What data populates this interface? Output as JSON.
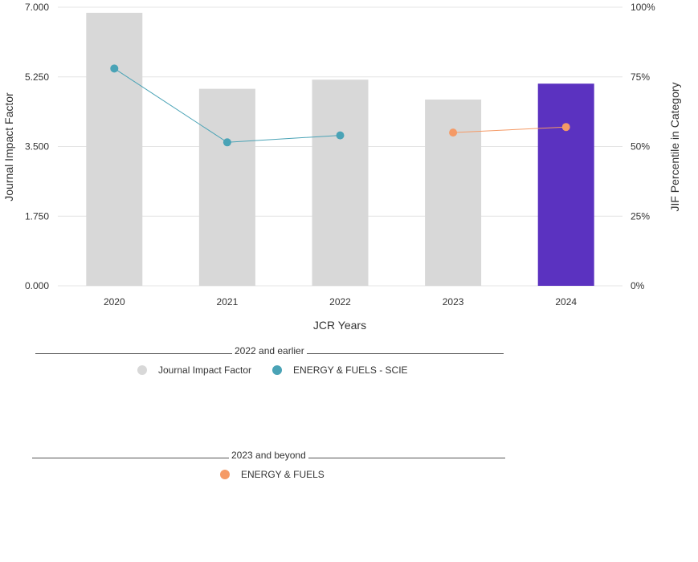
{
  "chart_data": {
    "type": "bar",
    "xlabel": "JCR Years",
    "ylabel": "Journal Impact Factor",
    "y2label": "JIF Percentile in Category",
    "categories": [
      "2020",
      "2021",
      "2022",
      "2023",
      "2024"
    ],
    "ylim": [
      0,
      7
    ],
    "y_ticks": [
      "0.000",
      "1.750",
      "3.500",
      "5.250",
      "7.000"
    ],
    "y2lim": [
      0,
      100
    ],
    "y2_ticks": [
      "0%",
      "25%",
      "50%",
      "75%",
      "100%"
    ],
    "grid": true,
    "bars": {
      "name": "Journal Impact Factor",
      "values": [
        6.86,
        4.95,
        5.18,
        4.68,
        5.08
      ],
      "colors": [
        "#d8d8d8",
        "#d8d8d8",
        "#d8d8d8",
        "#d8d8d8",
        "#5b32c0"
      ]
    },
    "lines": [
      {
        "name": "ENERGY & FUELS - SCIE",
        "color": "#4aa3b6",
        "points": [
          {
            "x": "2020",
            "y": 78
          },
          {
            "x": "2021",
            "y": 51.5
          },
          {
            "x": "2022",
            "y": 54
          }
        ]
      },
      {
        "name": "ENERGY & FUELS",
        "color": "#f59a66",
        "points": [
          {
            "x": "2023",
            "y": 55
          },
          {
            "x": "2024",
            "y": 57
          }
        ]
      }
    ]
  },
  "legend": {
    "group1": {
      "heading": "2022 and earlier",
      "items": [
        {
          "label": "Journal Impact Factor",
          "color": "#d8d8d8"
        },
        {
          "label": "ENERGY & FUELS - SCIE",
          "color": "#4aa3b6"
        }
      ]
    },
    "group2": {
      "heading": "2023 and beyond",
      "items": [
        {
          "label": "ENERGY & FUELS",
          "color": "#f59a66"
        }
      ]
    }
  }
}
